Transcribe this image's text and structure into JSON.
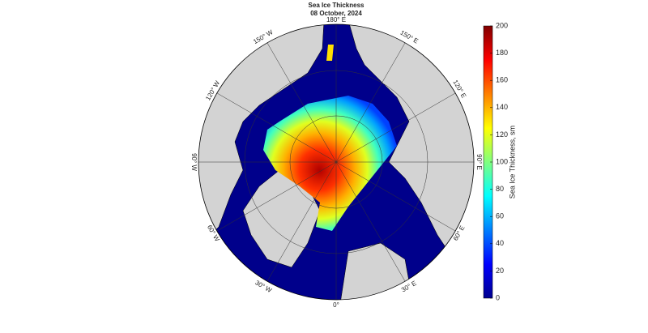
{
  "map": {
    "title": "Sea Ice Thickness",
    "subtitle": "08 October, 2024",
    "meridian_labels": [
      "180° E",
      "150° E",
      "120° E",
      "90° E",
      "60° E",
      "30° E",
      "0°",
      "30° W",
      "60° W",
      "90° W",
      "120° W",
      "150° W"
    ],
    "colorbar": {
      "label": "Sea Ice Thickness, sm",
      "lim": [
        0,
        200
      ],
      "ticks": [
        0,
        20,
        40,
        60,
        80,
        100,
        120,
        140,
        160,
        180,
        200
      ]
    }
  }
}
